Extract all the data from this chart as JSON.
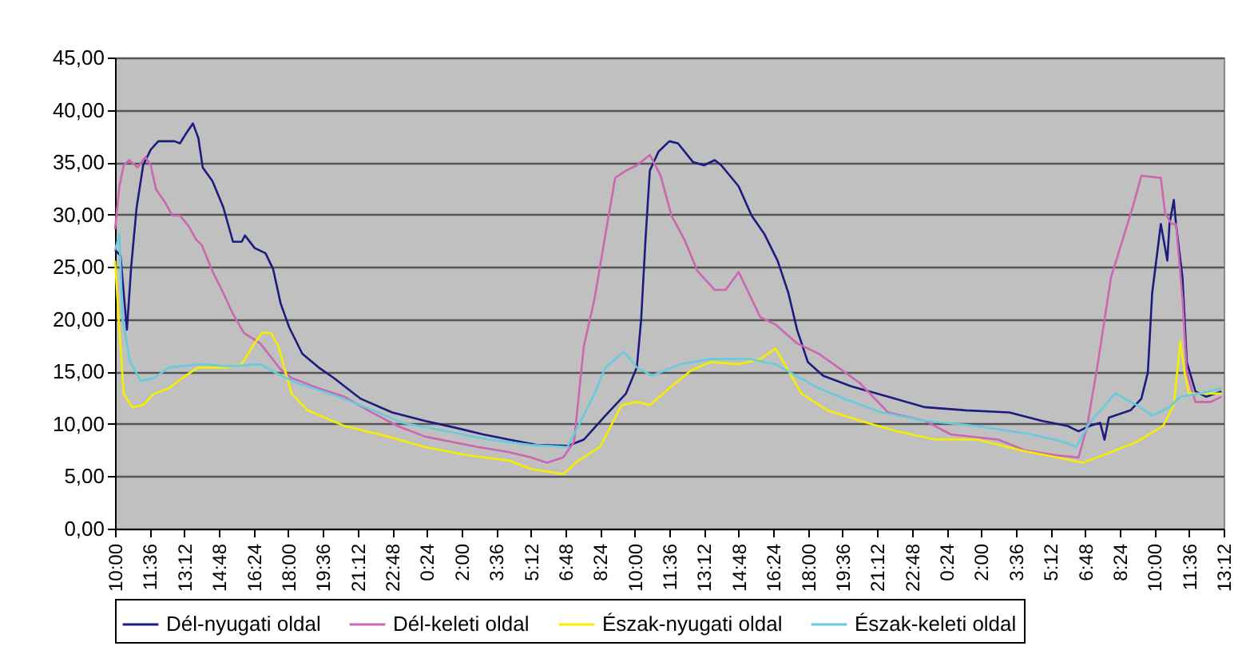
{
  "chart_data": {
    "type": "line",
    "grid": "y",
    "legend": "bottom",
    "marker": "none",
    "line_style": "solid",
    "xlim": [
      "2000-01-01T10:00",
      "2000-01-03T13:12"
    ],
    "xticks": [
      {
        "value": "2000-01-01T10:00",
        "label": "10:00"
      },
      {
        "value": "2000-01-01T11:36",
        "label": "11:36"
      },
      {
        "value": "2000-01-01T13:12",
        "label": "13:12"
      },
      {
        "value": "2000-01-01T14:48",
        "label": "14:48"
      },
      {
        "value": "2000-01-01T16:24",
        "label": "16:24"
      },
      {
        "value": "2000-01-01T18:00",
        "label": "18:00"
      },
      {
        "value": "2000-01-01T19:36",
        "label": "19:36"
      },
      {
        "value": "2000-01-01T21:12",
        "label": "21:12"
      },
      {
        "value": "2000-01-01T22:48",
        "label": "22:48"
      },
      {
        "value": "2000-01-02T00:24",
        "label": "0:24"
      },
      {
        "value": "2000-01-02T02:00",
        "label": "2:00"
      },
      {
        "value": "2000-01-02T03:36",
        "label": "3:36"
      },
      {
        "value": "2000-01-02T05:12",
        "label": "5:12"
      },
      {
        "value": "2000-01-02T06:48",
        "label": "6:48"
      },
      {
        "value": "2000-01-02T08:24",
        "label": "8:24"
      },
      {
        "value": "2000-01-02T10:00",
        "label": "10:00"
      },
      {
        "value": "2000-01-02T11:36",
        "label": "11:36"
      },
      {
        "value": "2000-01-02T13:12",
        "label": "13:12"
      },
      {
        "value": "2000-01-02T14:48",
        "label": "14:48"
      },
      {
        "value": "2000-01-02T16:24",
        "label": "16:24"
      },
      {
        "value": "2000-01-02T18:00",
        "label": "18:00"
      },
      {
        "value": "2000-01-02T19:36",
        "label": "19:36"
      },
      {
        "value": "2000-01-02T21:12",
        "label": "21:12"
      },
      {
        "value": "2000-01-02T22:48",
        "label": "22:48"
      },
      {
        "value": "2000-01-03T00:24",
        "label": "0:24"
      },
      {
        "value": "2000-01-03T02:00",
        "label": "2:00"
      },
      {
        "value": "2000-01-03T03:36",
        "label": "3:36"
      },
      {
        "value": "2000-01-03T05:12",
        "label": "5:12"
      },
      {
        "value": "2000-01-03T06:48",
        "label": "6:48"
      },
      {
        "value": "2000-01-03T08:24",
        "label": "8:24"
      },
      {
        "value": "2000-01-03T10:00",
        "label": "10:00"
      },
      {
        "value": "2000-01-03T11:36",
        "label": "11:36"
      },
      {
        "value": "2000-01-03T13:12",
        "label": "13:12"
      }
    ],
    "ylim": [
      0,
      45
    ],
    "yticks": [
      {
        "value": 0,
        "label": "0,00"
      },
      {
        "value": 5,
        "label": "5,00"
      },
      {
        "value": 10,
        "label": "10,00"
      },
      {
        "value": 15,
        "label": "15,00"
      },
      {
        "value": 20,
        "label": "20,00"
      },
      {
        "value": 25,
        "label": "25,00"
      },
      {
        "value": 30,
        "label": "30,00"
      },
      {
        "value": 35,
        "label": "35,00"
      },
      {
        "value": 40,
        "label": "40,00"
      },
      {
        "value": 45,
        "label": "45,00"
      }
    ],
    "series": [
      {
        "name": "Dél-nyugati oldal",
        "color": "#1c1c80",
        "x": [
          "2000-01-01T10:00",
          "2000-01-01T10:15",
          "2000-01-01T10:33",
          "2000-01-01T10:45",
          "2000-01-01T11:00",
          "2000-01-01T11:18",
          "2000-01-01T11:39",
          "2000-01-01T12:00",
          "2000-01-01T12:45",
          "2000-01-01T13:00",
          "2000-01-01T13:18",
          "2000-01-01T13:36",
          "2000-01-01T13:51",
          "2000-01-01T14:03",
          "2000-01-01T14:30",
          "2000-01-01T15:00",
          "2000-01-01T15:27",
          "2000-01-01T15:51",
          "2000-01-01T16:00",
          "2000-01-01T16:27",
          "2000-01-01T16:57",
          "2000-01-01T17:18",
          "2000-01-01T17:39",
          "2000-01-01T18:03",
          "2000-01-01T18:39",
          "2000-01-01T19:24",
          "2000-01-01T20:06",
          "2000-01-01T21:21",
          "2000-01-01T22:48",
          "2000-01-02T00:18",
          "2000-01-02T01:48",
          "2000-01-02T03:00",
          "2000-01-02T04:12",
          "2000-01-02T05:27",
          "2000-01-02T06:54",
          "2000-01-02T07:39",
          "2000-01-02T08:39",
          "2000-01-02T09:36",
          "2000-01-02T10:06",
          "2000-01-02T10:18",
          "2000-01-02T10:30",
          "2000-01-02T10:42",
          "2000-01-02T11:06",
          "2000-01-02T11:36",
          "2000-01-02T12:00",
          "2000-01-02T12:42",
          "2000-01-02T13:12",
          "2000-01-02T13:42",
          "2000-01-02T14:00",
          "2000-01-02T14:48",
          "2000-01-02T15:24",
          "2000-01-02T16:00",
          "2000-01-02T16:36",
          "2000-01-02T17:06",
          "2000-01-02T17:30",
          "2000-01-02T18:00",
          "2000-01-02T18:42",
          "2000-01-02T20:00",
          "2000-01-02T21:42",
          "2000-01-02T23:24",
          "2000-01-03T01:18",
          "2000-01-03T03:18",
          "2000-01-03T04:48",
          "2000-01-03T06:00",
          "2000-01-03T06:30",
          "2000-01-03T07:00",
          "2000-01-03T07:30",
          "2000-01-03T07:42",
          "2000-01-03T07:54",
          "2000-01-03T08:54",
          "2000-01-03T09:24",
          "2000-01-03T09:42",
          "2000-01-03T09:54",
          "2000-01-03T10:18",
          "2000-01-03T10:36",
          "2000-01-03T10:42",
          "2000-01-03T10:54",
          "2000-01-03T11:00",
          "2000-01-03T11:18",
          "2000-01-03T11:30",
          "2000-01-03T11:54",
          "2000-01-03T12:24",
          "2000-01-03T13:06"
        ],
        "values": [
          26.6,
          26.1,
          19.0,
          25.1,
          30.7,
          34.7,
          36.2,
          37.0,
          37.0,
          36.8,
          37.8,
          38.7,
          37.3,
          34.5,
          33.2,
          30.7,
          27.4,
          27.4,
          28.0,
          26.8,
          26.3,
          24.8,
          21.5,
          19.2,
          16.7,
          15.4,
          14.4,
          12.4,
          11.1,
          10.3,
          9.6,
          9.0,
          8.5,
          8.0,
          7.9,
          8.5,
          10.8,
          12.9,
          15.4,
          20.0,
          27.6,
          34.2,
          36.0,
          37.0,
          36.8,
          35.0,
          34.7,
          35.2,
          34.7,
          32.7,
          29.9,
          28.1,
          25.6,
          22.5,
          19.0,
          15.9,
          14.6,
          13.6,
          12.6,
          11.6,
          11.3,
          11.1,
          10.3,
          9.8,
          9.3,
          9.8,
          10.1,
          8.5,
          10.6,
          11.3,
          12.4,
          14.9,
          22.5,
          29.1,
          25.6,
          29.1,
          31.4,
          29.1,
          24.0,
          15.9,
          13.1,
          12.6,
          13.1
        ]
      },
      {
        "name": "Dél-keleti oldal",
        "color": "#cc66b0",
        "x": [
          "2000-01-01T10:00",
          "2000-01-01T10:12",
          "2000-01-01T10:24",
          "2000-01-01T10:39",
          "2000-01-01T11:03",
          "2000-01-01T11:24",
          "2000-01-01T11:39",
          "2000-01-01T11:54",
          "2000-01-01T12:18",
          "2000-01-01T12:39",
          "2000-01-01T13:00",
          "2000-01-01T13:24",
          "2000-01-01T13:45",
          "2000-01-01T14:00",
          "2000-01-01T14:30",
          "2000-01-01T15:00",
          "2000-01-01T15:27",
          "2000-01-01T15:57",
          "2000-01-01T16:42",
          "2000-01-01T17:12",
          "2000-01-01T17:39",
          "2000-01-01T18:09",
          "2000-01-01T19:24",
          "2000-01-01T20:36",
          "2000-01-01T21:51",
          "2000-01-01T23:03",
          "2000-01-02T00:18",
          "2000-01-02T02:45",
          "2000-01-02T04:12",
          "2000-01-02T05:12",
          "2000-01-02T05:57",
          "2000-01-02T06:42",
          "2000-01-02T07:12",
          "2000-01-02T07:39",
          "2000-01-02T08:09",
          "2000-01-02T08:39",
          "2000-01-02T09:06",
          "2000-01-02T09:36",
          "2000-01-02T10:06",
          "2000-01-02T10:42",
          "2000-01-02T11:12",
          "2000-01-02T11:42",
          "2000-01-02T12:18",
          "2000-01-02T12:54",
          "2000-01-02T13:42",
          "2000-01-02T14:12",
          "2000-01-02T14:48",
          "2000-01-02T15:12",
          "2000-01-02T15:48",
          "2000-01-02T16:30",
          "2000-01-02T17:30",
          "2000-01-02T18:30",
          "2000-01-02T19:24",
          "2000-01-02T20:24",
          "2000-01-02T21:42",
          "2000-01-02T23:24",
          "2000-01-03T00:36",
          "2000-01-03T02:48",
          "2000-01-03T04:00",
          "2000-01-03T05:30",
          "2000-01-03T06:30",
          "2000-01-03T06:54",
          "2000-01-03T07:24",
          "2000-01-03T08:00",
          "2000-01-03T09:00",
          "2000-01-03T09:24",
          "2000-01-03T10:18",
          "2000-01-03T10:30",
          "2000-01-03T10:48",
          "2000-01-03T11:00",
          "2000-01-03T11:18",
          "2000-01-03T11:30",
          "2000-01-03T11:54",
          "2000-01-03T12:36",
          "2000-01-03T13:06"
        ],
        "values": [
          28.6,
          32.7,
          34.7,
          35.2,
          34.5,
          35.5,
          34.7,
          32.4,
          31.2,
          29.9,
          29.9,
          28.9,
          27.6,
          27.1,
          24.6,
          22.5,
          20.5,
          18.7,
          17.7,
          16.4,
          15.2,
          14.4,
          13.4,
          12.6,
          11.1,
          9.8,
          8.8,
          7.8,
          7.3,
          6.8,
          6.3,
          6.8,
          8.3,
          17.4,
          22.0,
          28.1,
          33.5,
          34.2,
          34.7,
          35.7,
          33.7,
          29.9,
          27.6,
          24.6,
          22.8,
          22.8,
          24.5,
          22.8,
          20.2,
          19.5,
          17.7,
          16.7,
          15.4,
          13.9,
          11.1,
          10.3,
          9.0,
          8.5,
          7.5,
          7.0,
          6.8,
          9.8,
          15.9,
          24.0,
          30.7,
          33.7,
          33.5,
          30.1,
          29.1,
          29.1,
          22.0,
          14.9,
          12.1,
          12.1,
          12.6
        ]
      },
      {
        "name": "Észak-nyugati oldal",
        "color": "#f5ee00",
        "x": [
          "2000-01-01T10:00",
          "2000-01-01T10:12",
          "2000-01-01T10:24",
          "2000-01-01T10:48",
          "2000-01-01T11:18",
          "2000-01-01T11:48",
          "2000-01-01T12:30",
          "2000-01-01T13:15",
          "2000-01-01T13:51",
          "2000-01-01T15:12",
          "2000-01-01T15:51",
          "2000-01-01T16:27",
          "2000-01-01T16:48",
          "2000-01-01T17:12",
          "2000-01-01T17:33",
          "2000-01-01T18:09",
          "2000-01-01T18:54",
          "2000-01-01T20:36",
          "2000-01-01T22:36",
          "2000-01-02T00:18",
          "2000-01-02T02:18",
          "2000-01-02T04:12",
          "2000-01-02T05:12",
          "2000-01-02T06:42",
          "2000-01-02T07:24",
          "2000-01-02T08:24",
          "2000-01-02T09:24",
          "2000-01-02T10:06",
          "2000-01-02T10:42",
          "2000-01-02T11:36",
          "2000-01-02T12:36",
          "2000-01-02T13:30",
          "2000-01-02T14:48",
          "2000-01-02T15:48",
          "2000-01-02T16:30",
          "2000-01-02T17:06",
          "2000-01-02T17:42",
          "2000-01-02T18:54",
          "2000-01-02T20:24",
          "2000-01-02T22:06",
          "2000-01-02T23:54",
          "2000-01-03T01:48",
          "2000-01-03T03:48",
          "2000-01-03T05:30",
          "2000-01-03T06:42",
          "2000-01-03T08:00",
          "2000-01-03T09:12",
          "2000-01-03T10:24",
          "2000-01-03T10:54",
          "2000-01-03T11:12",
          "2000-01-03T11:24",
          "2000-01-03T11:36",
          "2000-01-03T13:06"
        ],
        "values": [
          25.6,
          19.0,
          12.9,
          11.6,
          11.8,
          12.9,
          13.4,
          14.6,
          15.4,
          15.4,
          15.7,
          17.7,
          18.7,
          18.7,
          17.4,
          12.9,
          11.3,
          9.8,
          8.8,
          7.8,
          7.0,
          6.5,
          5.7,
          5.2,
          6.5,
          7.8,
          11.8,
          12.1,
          11.8,
          13.4,
          15.1,
          15.9,
          15.7,
          16.2,
          17.2,
          15.1,
          12.9,
          11.3,
          10.3,
          9.3,
          8.5,
          8.5,
          7.5,
          6.8,
          6.3,
          7.3,
          8.3,
          9.8,
          11.8,
          17.9,
          14.9,
          12.9,
          12.9
        ]
      },
      {
        "name": "Észak-keleti oldal",
        "color": "#66ccdd",
        "x": [
          "2000-01-01T10:00",
          "2000-01-01T10:12",
          "2000-01-01T10:21",
          "2000-01-01T10:42",
          "2000-01-01T11:12",
          "2000-01-01T11:48",
          "2000-01-01T12:30",
          "2000-01-01T14:00",
          "2000-01-01T15:12",
          "2000-01-01T16:42",
          "2000-01-01T17:24",
          "2000-01-01T18:24",
          "2000-01-01T19:54",
          "2000-01-01T21:21",
          "2000-01-01T23:18",
          "2000-01-02T01:18",
          "2000-01-02T03:15",
          "2000-01-02T05:12",
          "2000-01-02T06:54",
          "2000-01-02T07:24",
          "2000-01-02T08:09",
          "2000-01-02T08:39",
          "2000-01-02T09:30",
          "2000-01-02T10:06",
          "2000-01-02T10:48",
          "2000-01-02T12:06",
          "2000-01-02T13:30",
          "2000-01-02T15:18",
          "2000-01-02T16:30",
          "2000-01-02T17:12",
          "2000-01-02T18:30",
          "2000-01-02T19:42",
          "2000-01-02T21:24",
          "2000-01-02T23:24",
          "2000-01-03T01:48",
          "2000-01-03T04:18",
          "2000-01-03T05:48",
          "2000-01-03T06:24",
          "2000-01-03T07:00",
          "2000-01-03T08:12",
          "2000-01-03T09:12",
          "2000-01-03T09:54",
          "2000-01-03T10:42",
          "2000-01-03T11:12",
          "2000-01-03T12:06",
          "2000-01-03T13:06"
        ],
        "values": [
          26.6,
          28.1,
          20.0,
          15.9,
          14.1,
          14.4,
          15.4,
          15.7,
          15.5,
          15.7,
          14.9,
          13.9,
          12.9,
          11.8,
          10.1,
          9.3,
          8.5,
          8.0,
          7.8,
          9.8,
          12.9,
          15.4,
          16.9,
          15.4,
          14.6,
          15.7,
          16.2,
          16.2,
          15.7,
          14.9,
          13.4,
          12.4,
          11.1,
          10.3,
          9.8,
          9.0,
          8.3,
          7.8,
          10.1,
          12.9,
          11.8,
          10.8,
          11.6,
          12.6,
          12.9,
          13.4
        ]
      }
    ]
  }
}
